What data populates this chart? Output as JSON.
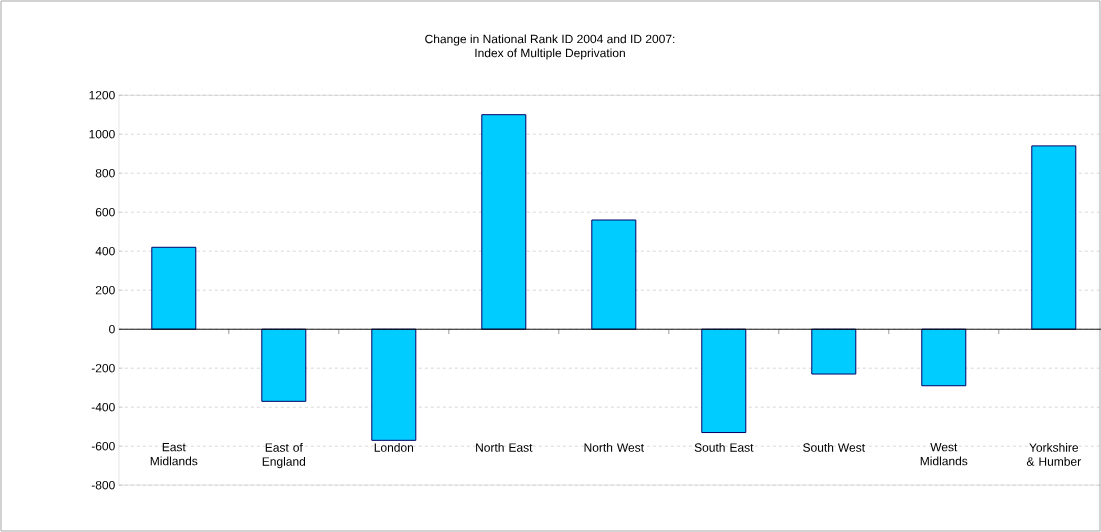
{
  "chart_data": {
    "type": "bar",
    "title": "Change in National Rank ID 2004 and ID 2007:",
    "subtitle": "Index of Multiple Deprivation",
    "categories": [
      "East Midlands",
      "East of England",
      "London",
      "North East",
      "North West",
      "South East",
      "South West",
      "West Midlands",
      "Yorkshire & Humber"
    ],
    "values": [
      420,
      -370,
      -570,
      1100,
      560,
      -530,
      -230,
      -290,
      940
    ],
    "color": "#00ccff",
    "ylim": [
      -800,
      1200
    ],
    "yticks": [
      -800,
      -600,
      -400,
      -200,
      0,
      200,
      400,
      600,
      800,
      1000,
      1200
    ],
    "grid": "y"
  }
}
